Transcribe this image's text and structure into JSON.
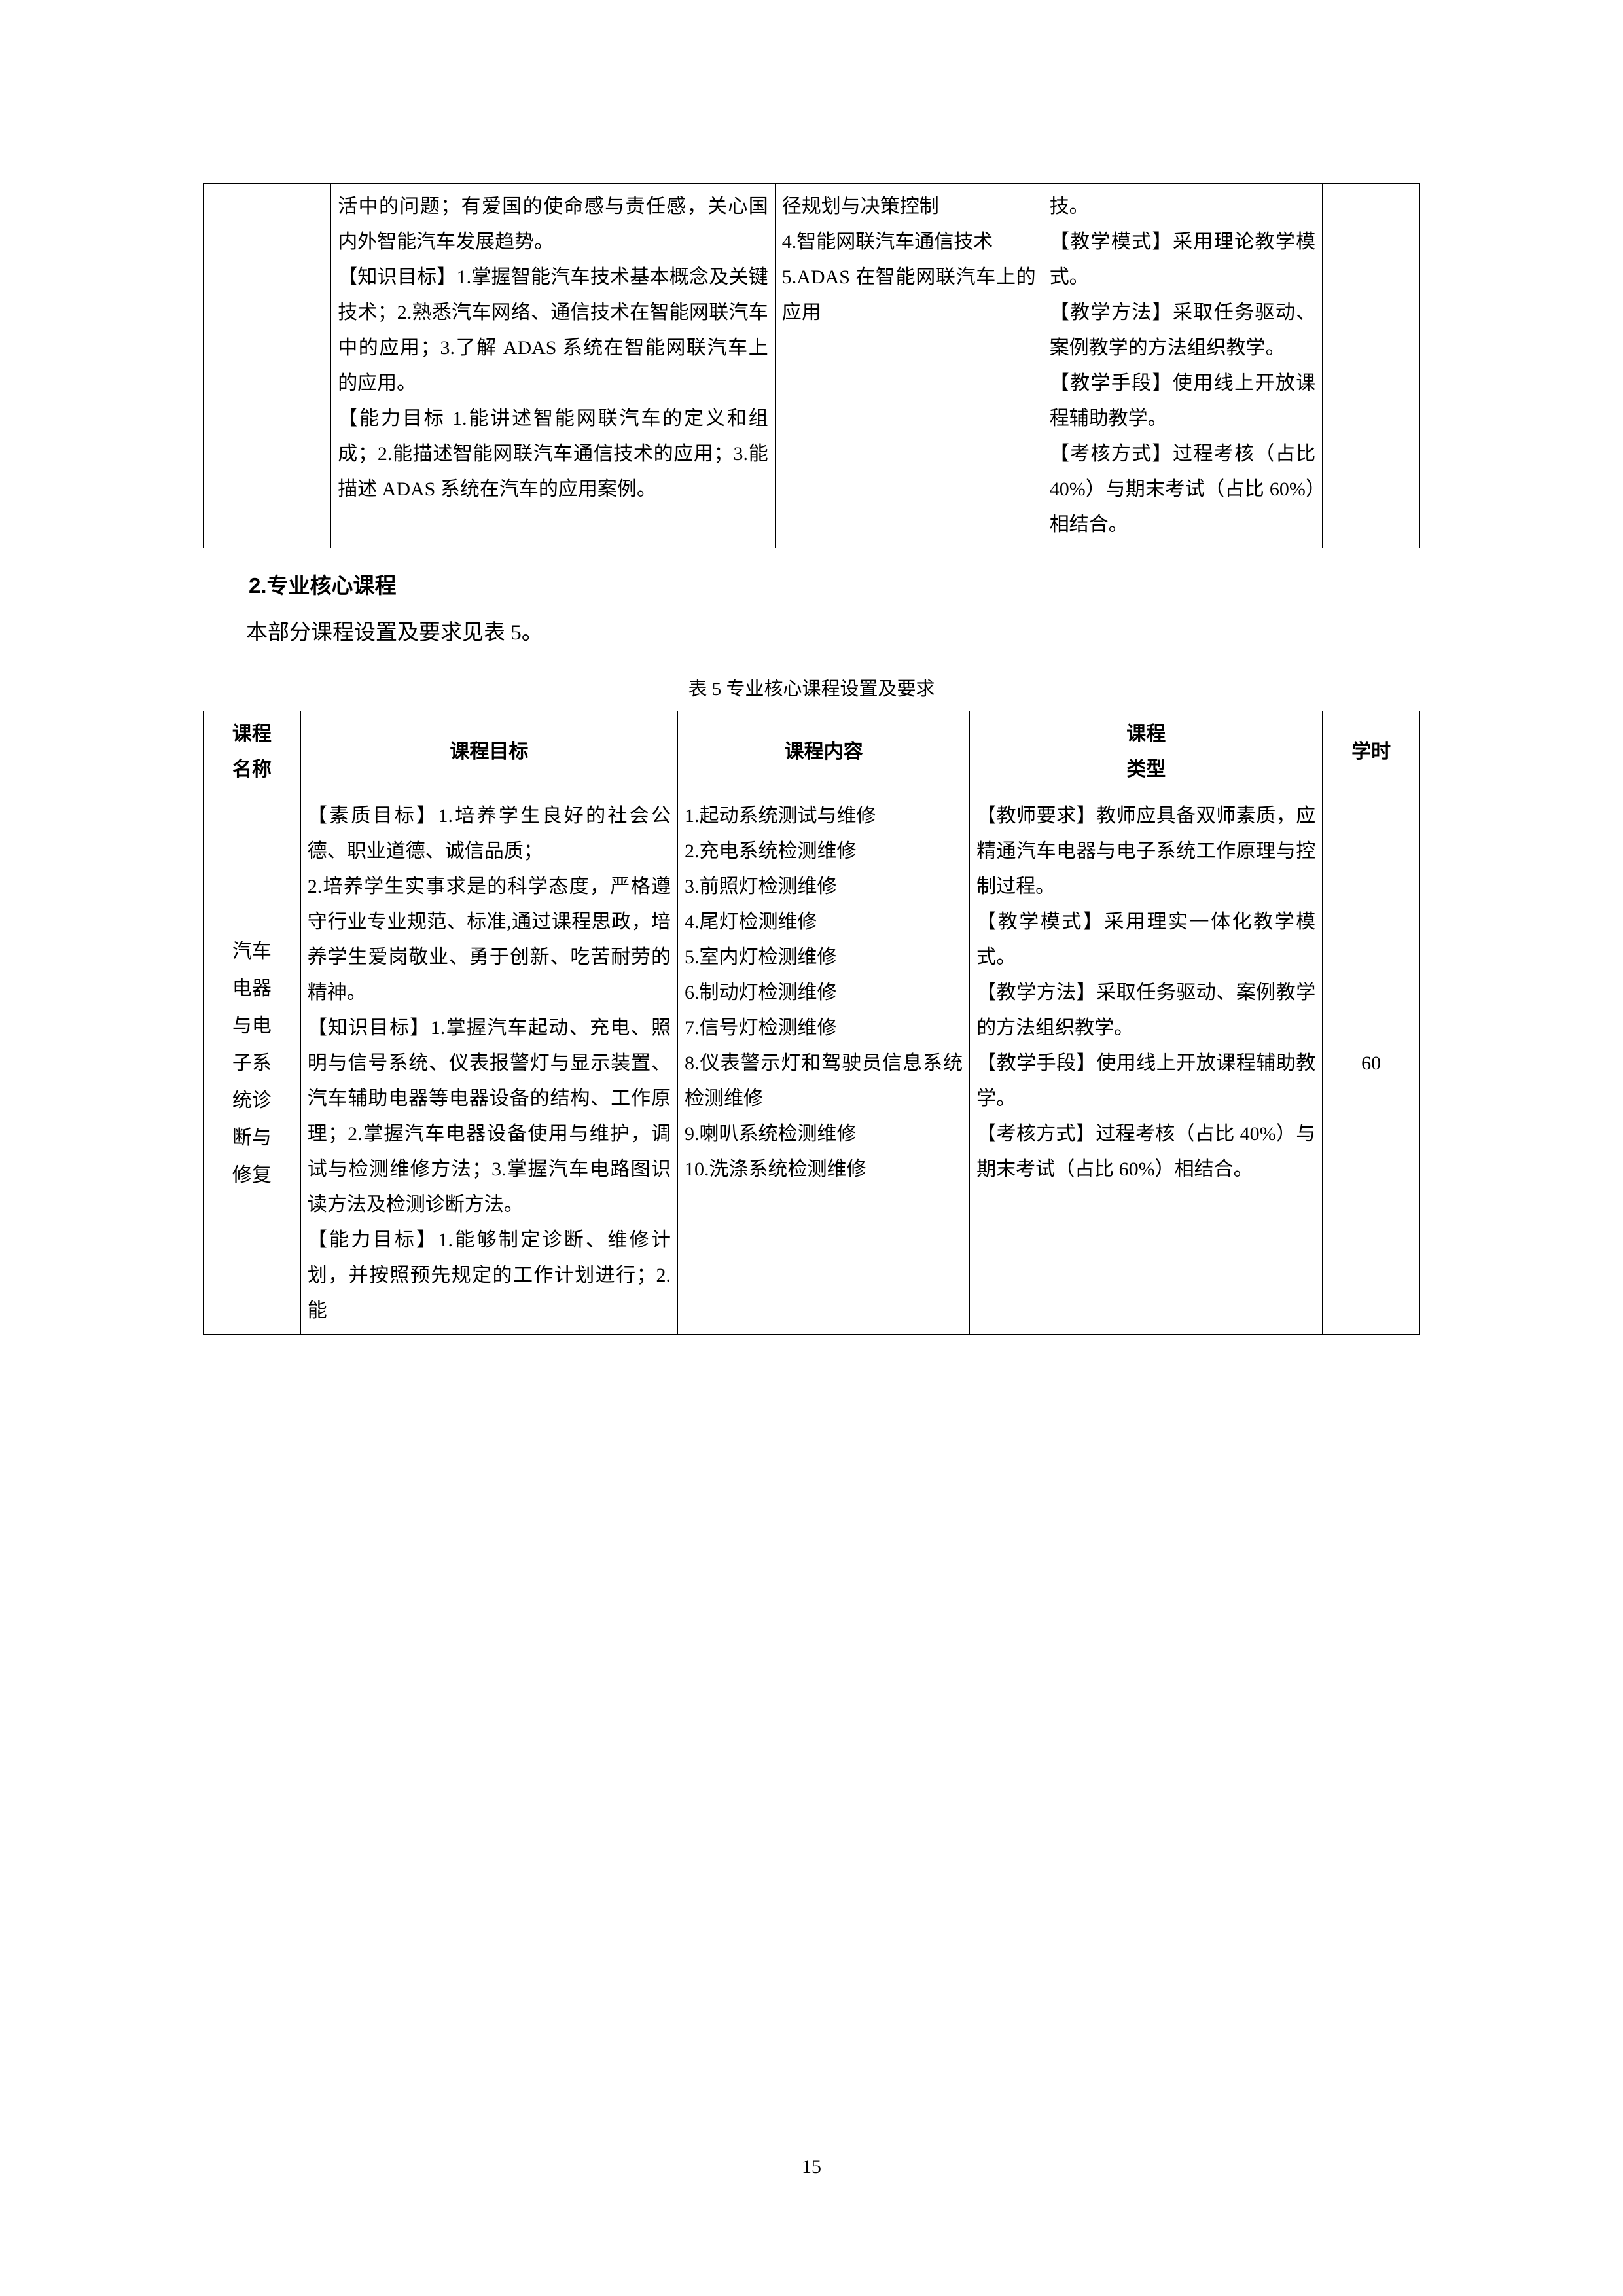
{
  "table1": {
    "row": {
      "col1": "",
      "col2": "活中的问题；有爱国的使命感与责任感，关心国内外智能汽车发展趋势。\n【知识目标】1.掌握智能汽车技术基本概念及关键技术；2.熟悉汽车网络、通信技术在智能网联汽车中的应用；3.了解 ADAS 系统在智能网联汽车上的应用。\n【能力目标 1.能讲述智能网联汽车的定义和组成；2.能描述智能网联汽车通信技术的应用；3.能描述 ADAS 系统在汽车的应用案例。",
      "col3": "径规划与决策控制\n4.智能网联汽车通信技术\n5.ADAS 在智能网联汽车上的应用",
      "col4": "技。\n【教学模式】采用理论教学模式。\n【教学方法】采取任务驱动、案例教学的方法组织教学。\n【教学手段】使用线上开放课程辅助教学。\n【考核方式】过程考核（占比 40%）与期末考试（占比 60%）相结合。",
      "col5": ""
    }
  },
  "section_heading": "2.专业核心课程",
  "body_text": "本部分课程设置及要求见表 5。",
  "table_caption": "表 5 专业核心课程设置及要求",
  "table2": {
    "headers": {
      "h1": "课程\n名称",
      "h2": "课程目标",
      "h3": "课程内容",
      "h4": "课程\n类型",
      "h5": "学时"
    },
    "row": {
      "c1": "汽车\n电器\n与电\n子系\n统诊\n断与\n修复",
      "c2": "【素质目标】1.培养学生良好的社会公德、职业道德、诚信品质；\n2.培养学生实事求是的科学态度，严格遵守行业专业规范、标准,通过课程思政，培养学生爱岗敬业、勇于创新、吃苦耐劳的精神。\n【知识目标】1.掌握汽车起动、充电、照明与信号系统、仪表报警灯与显示装置、汽车辅助电器等电器设备的结构、工作原理；2.掌握汽车电器设备使用与维护，调试与检测维修方法；3.掌握汽车电路图识读方法及检测诊断方法。\n【能力目标】1.能够制定诊断、维修计划，并按照预先规定的工作计划进行；2.能",
      "c3": "1.起动系统测试与维修\n2.充电系统检测维修\n3.前照灯检测维修\n4.尾灯检测维修\n5.室内灯检测维修\n6.制动灯检测维修\n7.信号灯检测维修\n8.仪表警示灯和驾驶员信息系统检测维修\n9.喇叭系统检测维修\n10.洗涤系统检测维修",
      "c4": "【教师要求】教师应具备双师素质，应精通汽车电器与电子系统工作原理与控制过程。\n【教学模式】采用理实一体化教学模式。\n【教学方法】采取任务驱动、案例教学的方法组织教学。\n【教学手段】使用线上开放课程辅助教学。\n【考核方式】过程考核（占比 40%）与期末考试（占比 60%）相结合。",
      "c5": "60"
    }
  },
  "page_number": "15"
}
